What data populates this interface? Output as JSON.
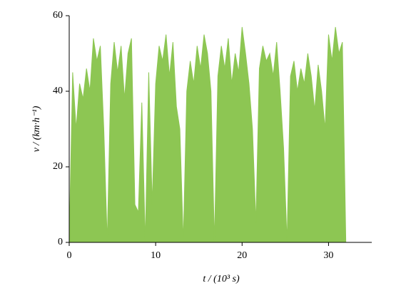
{
  "chart_data": {
    "type": "area",
    "xlabel": "t / (10³ s)",
    "ylabel": "v / (km·h⁻¹)",
    "color": "#8dc653",
    "x": [
      0,
      0.4,
      0.8,
      1.2,
      1.6,
      2.0,
      2.4,
      2.8,
      3.2,
      3.6,
      4.0,
      4.4,
      4.8,
      5.2,
      5.6,
      6.0,
      6.4,
      6.8,
      7.2,
      7.6,
      8.0,
      8.4,
      8.8,
      9.2,
      9.6,
      10.0,
      10.4,
      10.8,
      11.2,
      11.6,
      12.0,
      12.4,
      12.8,
      13.2,
      13.6,
      14.0,
      14.4,
      14.8,
      15.2,
      15.6,
      16.0,
      16.4,
      16.8,
      17.2,
      17.6,
      18.0,
      18.4,
      18.8,
      19.2,
      19.6,
      20.0,
      20.4,
      20.8,
      21.2,
      21.6,
      22.0,
      22.4,
      22.8,
      23.2,
      23.6,
      24.0,
      24.4,
      24.8,
      25.2,
      25.6,
      26.0,
      26.4,
      26.8,
      27.2,
      27.6,
      28.0,
      28.4,
      28.8,
      29.2,
      29.6,
      30.0,
      30.4,
      30.8,
      31.2,
      31.6,
      32.0
    ],
    "values": [
      0,
      45,
      30,
      42,
      38,
      46,
      40,
      54,
      48,
      52,
      30,
      0,
      42,
      53,
      45,
      52,
      38,
      50,
      54,
      10,
      8,
      37,
      0,
      45,
      10,
      42,
      52,
      48,
      55,
      44,
      53,
      36,
      30,
      0,
      40,
      48,
      42,
      52,
      46,
      55,
      50,
      40,
      0,
      44,
      52,
      46,
      54,
      42,
      50,
      45,
      57,
      50,
      42,
      30,
      5,
      46,
      52,
      48,
      50,
      44,
      53,
      40,
      25,
      0,
      44,
      48,
      40,
      46,
      42,
      50,
      44,
      35,
      47,
      40,
      30,
      55,
      48,
      57,
      50,
      53,
      0
    ],
    "xlim": [
      0,
      35
    ],
    "xticks": [
      0,
      10,
      20,
      30
    ],
    "ylim": [
      0,
      60
    ],
    "yticks": [
      0,
      20,
      40,
      60
    ]
  }
}
